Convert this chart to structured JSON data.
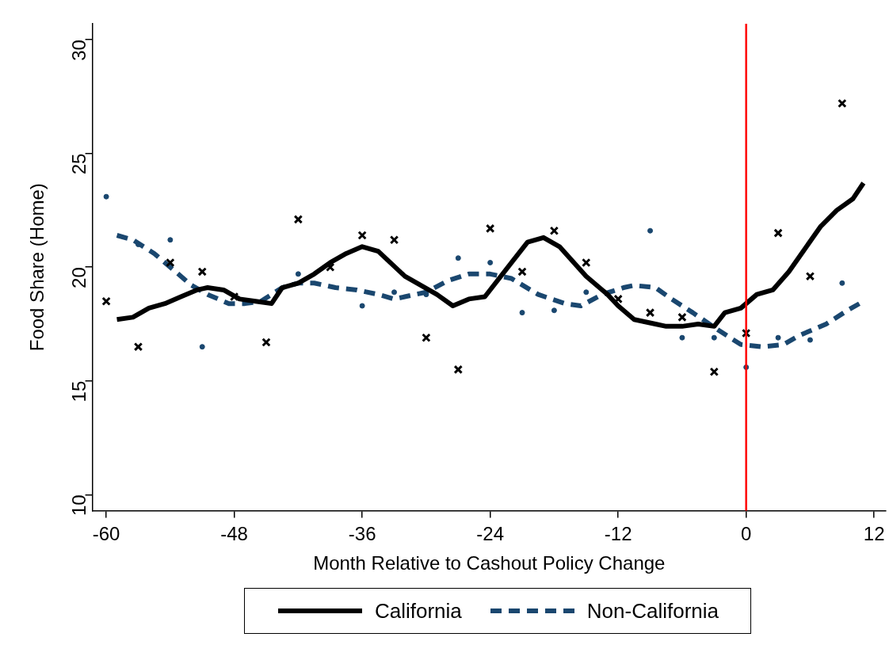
{
  "chart_data": {
    "type": "line",
    "xlabel": "Month Relative to Cashout Policy Change",
    "ylabel": "Food Share (Home)",
    "xlim": [
      -61.3,
      13.1
    ],
    "ylim": [
      9.3,
      30.7
    ],
    "xticks": [
      -60,
      -48,
      -36,
      -24,
      -12,
      0,
      12
    ],
    "yticks": [
      10,
      15,
      20,
      25,
      30
    ],
    "grid": false,
    "legend": "bottom",
    "ref_lines": [
      {
        "axis": "x",
        "value": 0,
        "color": "#ff0000"
      }
    ],
    "series": [
      {
        "type": "scatter",
        "color": "#000000",
        "marker": "cross",
        "x": [
          -60,
          -57,
          -54,
          -51,
          -48,
          -45,
          -42,
          -39,
          -36,
          -33,
          -30,
          -27,
          -24,
          -21,
          -18,
          -15,
          -12,
          -9,
          -6,
          -3,
          0,
          3,
          6,
          9
        ],
        "values": [
          18.5,
          16.5,
          20.2,
          19.8,
          18.7,
          16.7,
          22.1,
          20.0,
          21.4,
          21.2,
          16.9,
          15.5,
          21.7,
          19.8,
          21.6,
          20.2,
          18.6,
          18.0,
          17.8,
          15.4,
          17.1,
          21.5,
          19.6,
          27.2
        ]
      },
      {
        "type": "scatter",
        "color": "#1a476f",
        "marker": "circle",
        "x": [
          -60,
          -57,
          -54,
          -51,
          -48,
          -45,
          -42,
          -39,
          -36,
          -33,
          -30,
          -27,
          -24,
          -21,
          -18,
          -15,
          -12,
          -9,
          -6,
          -3,
          0,
          3,
          6,
          9
        ],
        "values": [
          23.1,
          21.0,
          21.2,
          16.5,
          null,
          null,
          19.7,
          null,
          18.3,
          18.9,
          18.8,
          20.4,
          20.2,
          18.0,
          18.1,
          18.9,
          null,
          21.6,
          16.9,
          16.9,
          15.6,
          16.9,
          16.8,
          19.3
        ]
      },
      {
        "type": "line",
        "name": "California",
        "color": "#000000",
        "line_style": "solid",
        "marker": "none",
        "x": [
          -59,
          -57.5,
          -56,
          -54.5,
          -53,
          -51.5,
          -50.5,
          -49,
          -47.5,
          -46,
          -44.5,
          -43.5,
          -42,
          -40.5,
          -39,
          -37.5,
          -36,
          -34.5,
          -32,
          -29,
          -27.5,
          -26,
          -24.5,
          -22,
          -20.5,
          -19,
          -17.5,
          -15,
          -13,
          -12,
          -10.5,
          -8.5,
          -7.5,
          -6,
          -4.5,
          -3,
          -2,
          -0.5,
          1,
          2.5,
          4,
          5.5,
          7,
          8.5,
          10,
          11
        ],
        "values": [
          17.7,
          17.8,
          18.2,
          18.4,
          18.7,
          19.0,
          19.1,
          19.0,
          18.6,
          18.5,
          18.4,
          19.1,
          19.3,
          19.7,
          20.2,
          20.6,
          20.9,
          20.7,
          19.6,
          18.8,
          18.3,
          18.6,
          18.7,
          20.2,
          21.1,
          21.3,
          20.9,
          19.6,
          18.8,
          18.3,
          17.7,
          17.5,
          17.4,
          17.4,
          17.5,
          17.4,
          18.0,
          18.2,
          18.8,
          19.0,
          19.8,
          20.8,
          21.8,
          22.5,
          23.0,
          23.7
        ]
      },
      {
        "type": "line",
        "name": "Non-California",
        "color": "#1a476f",
        "line_style": "dashed",
        "marker": "none",
        "x": [
          -59,
          -57.5,
          -55.5,
          -54,
          -52,
          -50.5,
          -48.5,
          -47,
          -45.5,
          -43.5,
          -42,
          -40.5,
          -38.5,
          -36.5,
          -34.5,
          -33,
          -30,
          -28,
          -26,
          -24,
          -22,
          -19.5,
          -17,
          -15.5,
          -13.5,
          -11.5,
          -10.5,
          -8.5,
          -7,
          -5,
          -2.5,
          -0.5,
          1.5,
          3.5,
          5,
          7.5,
          9.5,
          11
        ],
        "values": [
          21.4,
          21.2,
          20.6,
          20.0,
          19.2,
          18.8,
          18.4,
          18.4,
          18.5,
          19.1,
          19.3,
          19.3,
          19.1,
          19.0,
          18.8,
          18.6,
          18.9,
          19.4,
          19.7,
          19.7,
          19.5,
          18.8,
          18.4,
          18.3,
          18.8,
          19.1,
          19.2,
          19.1,
          18.6,
          18.0,
          17.2,
          16.6,
          16.5,
          16.6,
          17.0,
          17.5,
          18.1,
          18.5
        ]
      }
    ]
  }
}
